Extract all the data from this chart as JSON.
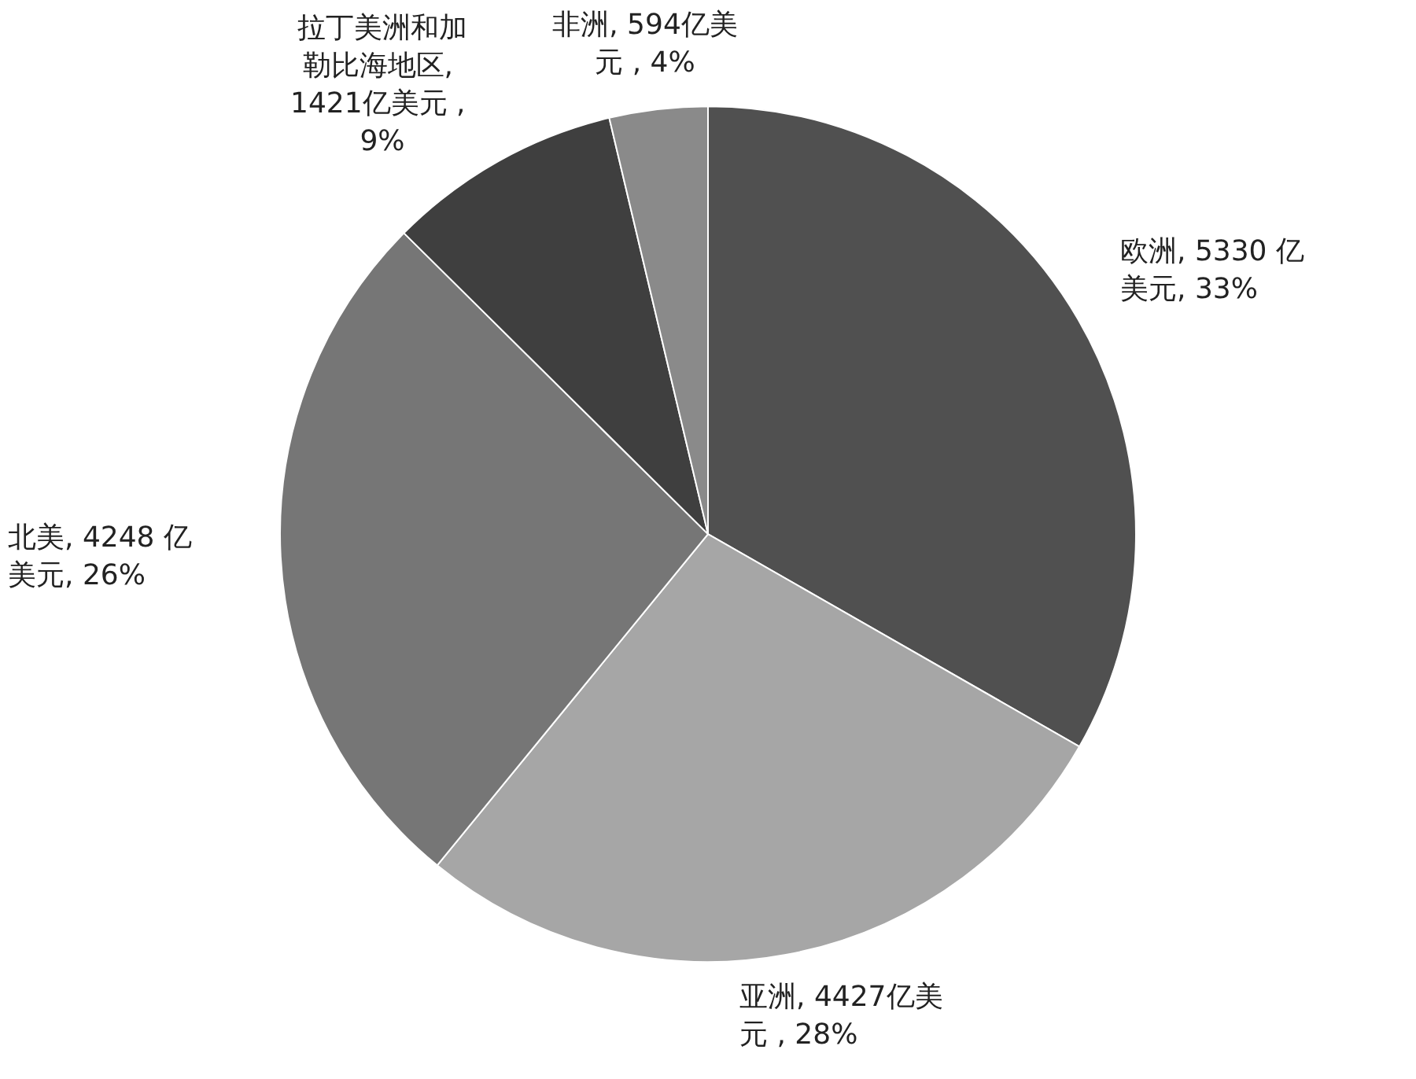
{
  "chart_data": {
    "type": "pie",
    "categories": [
      "欧洲",
      "亚洲",
      "北美",
      "拉丁美洲和加勒比海地区",
      "非洲"
    ],
    "values": [
      5330,
      4427,
      4248,
      1421,
      594
    ],
    "colors": [
      "#505050",
      "#a6a6a6",
      "#767676",
      "#3f3f3f",
      "#8a8a8a"
    ],
    "value_labels": [
      ", 5330 亿美元, 33%",
      ", 4427亿美元 , 28%",
      ", 4248 亿美元, 26%",
      ", 1421亿美元 , 9%",
      ", 594亿美元 , 4%"
    ],
    "legend": false
  }
}
